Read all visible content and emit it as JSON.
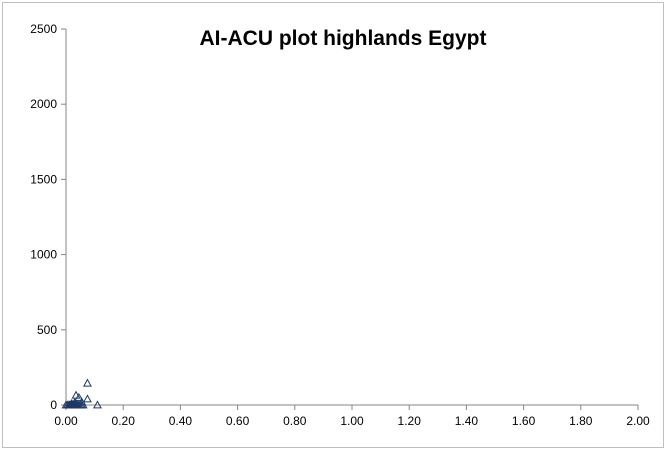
{
  "chart_data": {
    "type": "scatter",
    "title": "AI-ACU plot highlands Egypt",
    "xlabel": "",
    "ylabel": "",
    "xlim": [
      0,
      2
    ],
    "ylim": [
      0,
      2500
    ],
    "x_ticks": [
      "0.00",
      "0.20",
      "0.40",
      "0.60",
      "0.80",
      "1.00",
      "1.20",
      "1.40",
      "1.60",
      "1.80",
      "2.00"
    ],
    "y_ticks": [
      "0",
      "500",
      "1000",
      "1500",
      "2000",
      "2500"
    ],
    "grid": false,
    "legend": "none",
    "marker": "triangle-open",
    "series": [
      {
        "color": "#1f3864",
        "points": [
          [
            0.0,
            0
          ],
          [
            0.005,
            0
          ],
          [
            0.01,
            0
          ],
          [
            0.012,
            0
          ],
          [
            0.015,
            0
          ],
          [
            0.018,
            0
          ],
          [
            0.02,
            0
          ],
          [
            0.022,
            0
          ],
          [
            0.025,
            0
          ],
          [
            0.028,
            0
          ],
          [
            0.03,
            0
          ],
          [
            0.032,
            0
          ],
          [
            0.035,
            0
          ],
          [
            0.038,
            0
          ],
          [
            0.04,
            0
          ],
          [
            0.045,
            0
          ],
          [
            0.05,
            0
          ],
          [
            0.055,
            0
          ],
          [
            0.06,
            0
          ],
          [
            0.035,
            65
          ],
          [
            0.045,
            50
          ],
          [
            0.055,
            20
          ],
          [
            0.075,
            145
          ],
          [
            0.075,
            40
          ],
          [
            0.11,
            0
          ],
          [
            0.02,
            10
          ],
          [
            0.03,
            15
          ]
        ]
      }
    ]
  }
}
